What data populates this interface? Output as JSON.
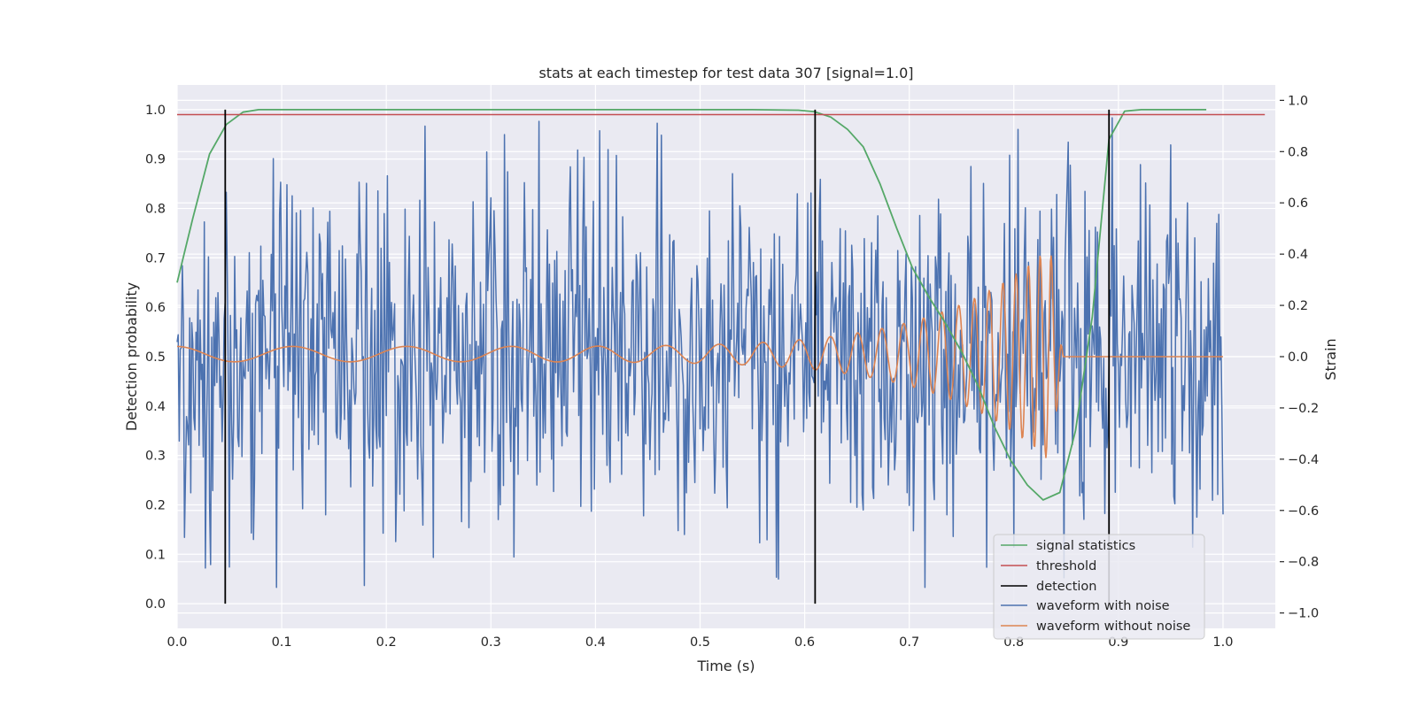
{
  "chart_data": {
    "type": "line",
    "title": "stats at each timestep for test data 307 [signal=1.0]",
    "xlabel": "Time (s)",
    "ylabel": "Detection probability",
    "y2label": "Strain",
    "xlim": [
      0.0,
      1.05
    ],
    "ylim": [
      -0.05,
      1.05
    ],
    "y2lim": [
      -1.06,
      1.06
    ],
    "xticks": [
      "0.0",
      "0.1",
      "0.2",
      "0.3",
      "0.4",
      "0.5",
      "0.6",
      "0.7",
      "0.8",
      "0.9",
      "1.0"
    ],
    "yticks": [
      "0.0",
      "0.1",
      "0.2",
      "0.3",
      "0.4",
      "0.5",
      "0.6",
      "0.7",
      "0.8",
      "0.9",
      "1.0"
    ],
    "y2ticks": [
      "−1.0",
      "−0.8",
      "−0.6",
      "−0.4",
      "−0.2",
      "0.0",
      "0.2",
      "0.4",
      "0.6",
      "0.8",
      "1.0"
    ],
    "grid": true,
    "legend_position": "lower-right",
    "colors": {
      "background": "#eaeaf2",
      "grid": "#ffffff",
      "signal_statistics": "#55a868",
      "threshold": "#c44e52",
      "detection": "#000000",
      "waveform_with_noise": "#4c72b0",
      "waveform_without_noise": "#dd8452"
    },
    "series": [
      {
        "name": "signal statistics",
        "axis": "left",
        "x": [
          0.0,
          0.015,
          0.031,
          0.047,
          0.063,
          0.078,
          0.1,
          0.2,
          0.3,
          0.4,
          0.5,
          0.55,
          0.594,
          0.609,
          0.625,
          0.641,
          0.656,
          0.672,
          0.688,
          0.703,
          0.719,
          0.734,
          0.75,
          0.766,
          0.781,
          0.797,
          0.813,
          0.828,
          0.844,
          0.859,
          0.875,
          0.891,
          0.906,
          0.922,
          0.95,
          0.984
        ],
        "y": [
          0.65,
          0.78,
          0.91,
          0.97,
          0.995,
          1.0,
          1.0,
          1.0,
          1.0,
          1.0,
          1.0,
          1.0,
          0.999,
          0.996,
          0.985,
          0.96,
          0.925,
          0.85,
          0.76,
          0.68,
          0.62,
          0.57,
          0.51,
          0.44,
          0.36,
          0.29,
          0.24,
          0.21,
          0.225,
          0.35,
          0.58,
          0.94,
          0.997,
          1.0,
          1.0,
          1.0
        ]
      },
      {
        "name": "threshold",
        "axis": "left",
        "x": [
          0.0,
          1.04
        ],
        "y": [
          0.99,
          0.99
        ]
      },
      {
        "name": "detection",
        "axis": "left",
        "type": "vlines",
        "x": [
          0.046,
          0.61,
          0.891
        ],
        "ymin": 0.0,
        "ymax": 1.0
      },
      {
        "name": "waveform with noise",
        "axis": "right",
        "description": "noisy strain, about 1000 samples from 0.0 to 1.0 s, roughly uniform noise in [-0.9, 1.0]",
        "x_range": [
          0.0,
          1.0
        ],
        "y_range": [
          -0.9,
          1.0
        ]
      },
      {
        "name": "waveform without noise",
        "axis": "right",
        "description": "chirp signal, frequency and amplitude increasing until merger near 0.835 s, then flat at 0.0 until 1.0 s",
        "x_range": [
          0.0,
          1.0
        ],
        "merger_time": 0.835,
        "amplitude_start": 0.03,
        "amplitude_peak": 0.42
      }
    ]
  }
}
